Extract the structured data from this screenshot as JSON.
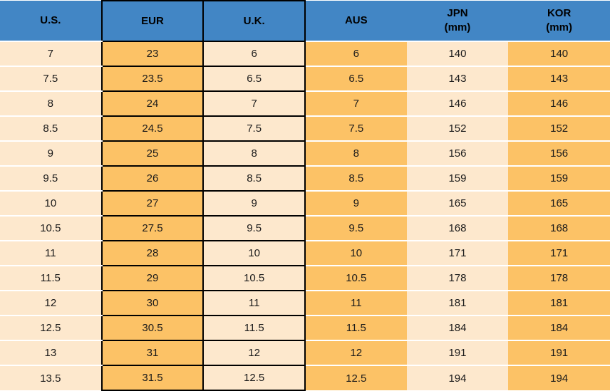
{
  "chart_data": {
    "type": "table",
    "columns": [
      {
        "key": "us",
        "label": "U.S.",
        "body_bg": "cream",
        "black_border": false
      },
      {
        "key": "eur",
        "label": "EUR",
        "body_bg": "orange",
        "black_border": true
      },
      {
        "key": "uk",
        "label": "U.K.",
        "body_bg": "cream",
        "black_border": true
      },
      {
        "key": "aus",
        "label": "AUS",
        "body_bg": "orange",
        "black_border": false
      },
      {
        "key": "jpn",
        "label": "JPN",
        "sublabel": "(mm)",
        "body_bg": "cream",
        "black_border": false
      },
      {
        "key": "kor",
        "label": "KOR",
        "sublabel": "(mm)",
        "body_bg": "orange",
        "black_border": false
      }
    ],
    "rows": [
      [
        "7",
        "23",
        "6",
        "6",
        "140",
        "140"
      ],
      [
        "7.5",
        "23.5",
        "6.5",
        "6.5",
        "143",
        "143"
      ],
      [
        "8",
        "24",
        "7",
        "7",
        "146",
        "146"
      ],
      [
        "8.5",
        "24.5",
        "7.5",
        "7.5",
        "152",
        "152"
      ],
      [
        "9",
        "25",
        "8",
        "8",
        "156",
        "156"
      ],
      [
        "9.5",
        "26",
        "8.5",
        "8.5",
        "159",
        "159"
      ],
      [
        "10",
        "27",
        "9",
        "9",
        "165",
        "165"
      ],
      [
        "10.5",
        "27.5",
        "9.5",
        "9.5",
        "168",
        "168"
      ],
      [
        "11",
        "28",
        "10",
        "10",
        "171",
        "171"
      ],
      [
        "11.5",
        "29",
        "10.5",
        "10.5",
        "178",
        "178"
      ],
      [
        "12",
        "30",
        "11",
        "11",
        "181",
        "181"
      ],
      [
        "12.5",
        "30.5",
        "11.5",
        "11.5",
        "184",
        "184"
      ],
      [
        "13",
        "31",
        "12",
        "12",
        "191",
        "191"
      ],
      [
        "13.5",
        "31.5",
        "12.5",
        "12.5",
        "194",
        "194"
      ]
    ],
    "layout": {
      "header_bg": "#4286C5",
      "cream": "#FDE8CD",
      "orange": "#FCC266",
      "border_color": "#000000",
      "row_separator": "#FFFFFF",
      "grid": "row-separators-and-bordered-eur-uk-columns",
      "columns_equal_width": true
    }
  }
}
